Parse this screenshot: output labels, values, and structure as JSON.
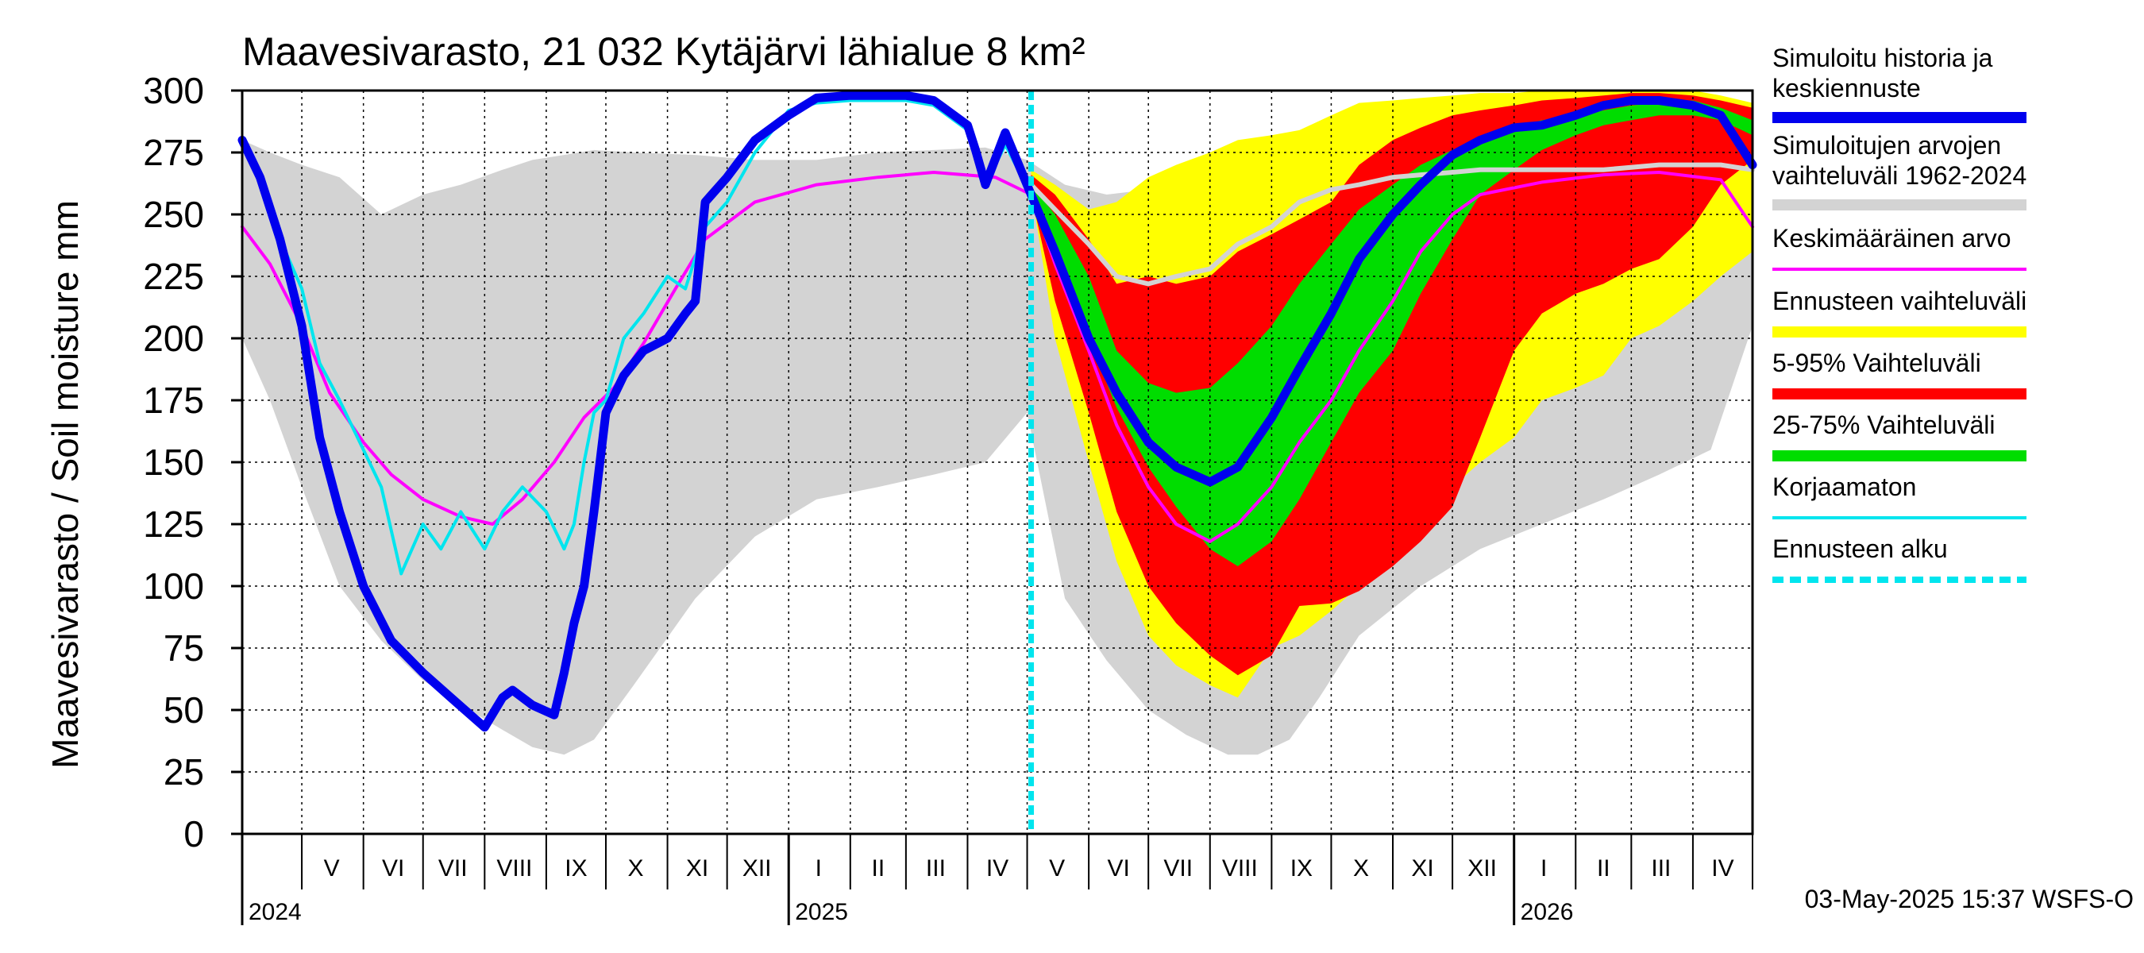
{
  "chart_data": {
    "type": "area",
    "title": "Maavesivarasto, 21 032 Kytäjärvi lähialue 8 km²",
    "ylabel": "Maavesivarasto / Soil moisture   mm",
    "ylim": [
      0,
      300
    ],
    "yticks": [
      "0",
      "25",
      "50",
      "75",
      "100",
      "125",
      "150",
      "175",
      "200",
      "225",
      "250",
      "275",
      "300"
    ],
    "x_start": "2024-04-01",
    "x_end": "2026-05-01",
    "forecast_start": "2025-05-03",
    "month_labels": [
      {
        "label": "V",
        "date": "2024-05-16"
      },
      {
        "label": "VI",
        "date": "2024-06-16"
      },
      {
        "label": "VII",
        "date": "2024-07-16"
      },
      {
        "label": "VIII",
        "date": "2024-08-16"
      },
      {
        "label": "IX",
        "date": "2024-09-16"
      },
      {
        "label": "X",
        "date": "2024-10-16"
      },
      {
        "label": "XI",
        "date": "2024-11-16"
      },
      {
        "label": "XII",
        "date": "2024-12-16"
      },
      {
        "label": "I",
        "date": "2025-01-16"
      },
      {
        "label": "II",
        "date": "2025-02-15"
      },
      {
        "label": "III",
        "date": "2025-03-16"
      },
      {
        "label": "IV",
        "date": "2025-04-16"
      },
      {
        "label": "V",
        "date": "2025-05-16"
      },
      {
        "label": "VI",
        "date": "2025-06-16"
      },
      {
        "label": "VII",
        "date": "2025-07-16"
      },
      {
        "label": "VIII",
        "date": "2025-08-16"
      },
      {
        "label": "IX",
        "date": "2025-09-16"
      },
      {
        "label": "X",
        "date": "2025-10-16"
      },
      {
        "label": "XI",
        "date": "2025-11-16"
      },
      {
        "label": "XII",
        "date": "2025-12-16"
      },
      {
        "label": "I",
        "date": "2026-01-16"
      },
      {
        "label": "II",
        "date": "2026-02-15"
      },
      {
        "label": "III",
        "date": "2026-03-16"
      },
      {
        "label": "IV",
        "date": "2026-04-16"
      }
    ],
    "year_labels": [
      {
        "label": "2024",
        "date": "2024-04-01"
      },
      {
        "label": "2025",
        "date": "2025-01-01"
      },
      {
        "label": "2026",
        "date": "2026-01-01"
      }
    ],
    "footer": "03-May-2025 15:37 WSFS-O",
    "legend": [
      {
        "label": "Simuloitu historia ja\nkeskiennuste",
        "color": "#0000ee",
        "style": "thick"
      },
      {
        "label": "Simuloitujen arvojen\nvaihteluväli 1962-2024",
        "color": "#d3d3d3",
        "style": "band"
      },
      {
        "label": "Keskimääräinen arvo",
        "color": "#ff00ff",
        "style": "line"
      },
      {
        "label": "Ennusteen vaihteluväli",
        "color": "#ffff00",
        "style": "band"
      },
      {
        "label": "5-95% Vaihteluväli",
        "color": "#ff0000",
        "style": "band"
      },
      {
        "label": "25-75% Vaihteluväli",
        "color": "#00dd00",
        "style": "band"
      },
      {
        "label": "Korjaamaton",
        "color": "#00e5ee",
        "style": "line"
      },
      {
        "label": "Ennusteen alku",
        "color": "#00e5ee",
        "style": "dashed"
      }
    ],
    "series": [
      {
        "name": "Simuloitujen arvojen vaihteluväli 1962-2024",
        "kind": "band",
        "color": "#d3d3d3",
        "x": [
          "2024-04-01",
          "2024-04-15",
          "2024-05-01",
          "2024-05-20",
          "2024-06-10",
          "2024-07-01",
          "2024-07-20",
          "2024-08-10",
          "2024-08-25",
          "2024-09-10",
          "2024-09-25",
          "2024-10-15",
          "2024-11-15",
          "2024-12-15",
          "2025-01-15",
          "2025-02-15",
          "2025-03-15",
          "2025-04-10",
          "2025-05-01",
          "2025-05-20",
          "2025-06-10",
          "2025-07-01",
          "2025-07-20",
          "2025-08-10",
          "2025-08-25",
          "2025-09-10",
          "2025-09-25",
          "2025-10-15",
          "2025-11-15",
          "2025-12-15",
          "2026-01-15",
          "2026-02-15",
          "2026-03-15",
          "2026-04-10",
          "2026-05-01"
        ],
        "low": [
          200,
          175,
          140,
          100,
          78,
          62,
          52,
          42,
          35,
          32,
          38,
          60,
          95,
          120,
          135,
          140,
          145,
          150,
          170,
          95,
          70,
          50,
          40,
          32,
          32,
          38,
          55,
          80,
          100,
          115,
          125,
          135,
          145,
          155,
          205
        ],
        "high": [
          280,
          275,
          270,
          265,
          250,
          258,
          262,
          268,
          272,
          274,
          276,
          275,
          274,
          272,
          272,
          275,
          276,
          277,
          272,
          262,
          258,
          260,
          262,
          264,
          266,
          268,
          272,
          274,
          274,
          274,
          274,
          274,
          276,
          278,
          285
        ]
      },
      {
        "name": "Ennusteen vaihteluväli",
        "kind": "band",
        "color": "#ffff00",
        "x": [
          "2025-05-03",
          "2025-05-15",
          "2025-06-01",
          "2025-06-15",
          "2025-07-01",
          "2025-07-15",
          "2025-08-01",
          "2025-08-15",
          "2025-09-01",
          "2025-09-15",
          "2025-10-01",
          "2025-10-15",
          "2025-11-01",
          "2025-11-15",
          "2025-12-01",
          "2025-12-15",
          "2026-01-01",
          "2026-01-15",
          "2026-02-01",
          "2026-02-15",
          "2026-03-01",
          "2026-03-15",
          "2026-04-01",
          "2026-04-15",
          "2026-05-01"
        ],
        "low": [
          260,
          200,
          150,
          110,
          80,
          68,
          60,
          55,
          75,
          80,
          90,
          100,
          120,
          130,
          140,
          150,
          160,
          175,
          180,
          185,
          200,
          205,
          215,
          225,
          235
        ],
        "high": [
          268,
          262,
          252,
          255,
          265,
          270,
          275,
          280,
          282,
          284,
          290,
          295,
          296,
          297,
          298,
          299,
          299,
          300,
          300,
          300,
          300,
          300,
          300,
          298,
          295
        ]
      },
      {
        "name": "5-95% Vaihteluväli",
        "kind": "band",
        "color": "#ff0000",
        "x": [
          "2025-05-03",
          "2025-05-15",
          "2025-06-01",
          "2025-06-15",
          "2025-07-01",
          "2025-07-15",
          "2025-08-01",
          "2025-08-15",
          "2025-09-01",
          "2025-09-15",
          "2025-10-01",
          "2025-10-15",
          "2025-11-01",
          "2025-11-15",
          "2025-12-01",
          "2025-12-15",
          "2026-01-01",
          "2026-01-15",
          "2026-02-01",
          "2026-02-15",
          "2026-03-01",
          "2026-03-15",
          "2026-04-01",
          "2026-04-15",
          "2026-05-01"
        ],
        "low": [
          258,
          215,
          170,
          130,
          100,
          85,
          72,
          64,
          72,
          92,
          93,
          98,
          108,
          118,
          132,
          160,
          195,
          210,
          218,
          222,
          228,
          232,
          245,
          262,
          272
        ],
        "high": [
          266,
          258,
          240,
          222,
          225,
          222,
          225,
          235,
          242,
          248,
          255,
          270,
          280,
          285,
          290,
          292,
          294,
          296,
          297,
          298,
          299,
          299,
          298,
          296,
          293
        ]
      },
      {
        "name": "25-75% Vaihteluväli",
        "kind": "band",
        "color": "#00dd00",
        "x": [
          "2025-05-03",
          "2025-05-15",
          "2025-06-01",
          "2025-06-15",
          "2025-07-01",
          "2025-07-15",
          "2025-08-01",
          "2025-08-15",
          "2025-09-01",
          "2025-09-15",
          "2025-10-01",
          "2025-10-15",
          "2025-11-01",
          "2025-11-15",
          "2025-12-01",
          "2025-12-15",
          "2026-01-01",
          "2026-01-15",
          "2026-02-01",
          "2026-02-15",
          "2026-03-01",
          "2026-03-15",
          "2026-04-01",
          "2026-04-15",
          "2026-05-01"
        ],
        "low": [
          256,
          235,
          200,
          172,
          148,
          132,
          115,
          108,
          118,
          135,
          158,
          178,
          195,
          218,
          240,
          258,
          268,
          276,
          282,
          286,
          288,
          290,
          290,
          288,
          282
        ],
        "high": [
          262,
          250,
          225,
          195,
          182,
          178,
          180,
          190,
          205,
          222,
          238,
          252,
          262,
          270,
          276,
          280,
          285,
          288,
          290,
          292,
          294,
          295,
          296,
          293,
          288
        ]
      },
      {
        "name": "Simuloitu historia ja keskiennuste",
        "kind": "line",
        "color": "#0000ee",
        "width": 11,
        "x": [
          "2024-04-01",
          "2024-04-10",
          "2024-04-20",
          "2024-05-01",
          "2024-05-10",
          "2024-05-20",
          "2024-06-01",
          "2024-06-15",
          "2024-07-01",
          "2024-07-15",
          "2024-08-01",
          "2024-08-10",
          "2024-08-15",
          "2024-08-25",
          "2024-09-05",
          "2024-09-10",
          "2024-09-15",
          "2024-09-20",
          "2024-09-25",
          "2024-10-01",
          "2024-10-10",
          "2024-10-20",
          "2024-11-01",
          "2024-11-10",
          "2024-11-15",
          "2024-11-20",
          "2024-12-01",
          "2024-12-15",
          "2025-01-01",
          "2025-01-15",
          "2025-02-01",
          "2025-02-15",
          "2025-03-01",
          "2025-03-15",
          "2025-04-01",
          "2025-04-05",
          "2025-04-10",
          "2025-04-20",
          "2025-05-03",
          "2025-05-15",
          "2025-06-01",
          "2025-06-15",
          "2025-07-01",
          "2025-07-15",
          "2025-08-01",
          "2025-08-15",
          "2025-09-01",
          "2025-09-15",
          "2025-10-01",
          "2025-10-15",
          "2025-11-01",
          "2025-11-15",
          "2025-12-01",
          "2025-12-15",
          "2026-01-01",
          "2026-01-15",
          "2026-02-01",
          "2026-02-15",
          "2026-03-01",
          "2026-03-15",
          "2026-04-01",
          "2026-04-15",
          "2026-05-01"
        ],
        "values": [
          280,
          265,
          240,
          205,
          160,
          130,
          100,
          78,
          65,
          55,
          43,
          55,
          58,
          52,
          48,
          65,
          85,
          100,
          130,
          170,
          185,
          195,
          200,
          210,
          215,
          255,
          265,
          280,
          290,
          297,
          298,
          298,
          298,
          296,
          286,
          276,
          262,
          283,
          258,
          235,
          200,
          178,
          158,
          148,
          142,
          148,
          168,
          188,
          210,
          232,
          250,
          262,
          274,
          280,
          285,
          286,
          290,
          294,
          296,
          296,
          294,
          290,
          270
        ]
      },
      {
        "name": "Keskimääräinen arvo",
        "kind": "line",
        "color": "#ff00ff",
        "width": 4,
        "x": [
          "2024-04-01",
          "2024-04-15",
          "2024-05-01",
          "2024-05-15",
          "2024-06-01",
          "2024-06-15",
          "2024-07-01",
          "2024-07-20",
          "2024-08-05",
          "2024-08-20",
          "2024-09-05",
          "2024-09-20",
          "2024-10-05",
          "2024-10-20",
          "2024-11-05",
          "2024-11-20",
          "2024-12-15",
          "2025-01-15",
          "2025-02-15",
          "2025-03-15",
          "2025-04-15",
          "2025-05-03",
          "2025-05-15",
          "2025-06-01",
          "2025-06-15",
          "2025-07-01",
          "2025-07-15",
          "2025-08-01",
          "2025-08-15",
          "2025-09-01",
          "2025-09-15",
          "2025-10-01",
          "2025-10-15",
          "2025-11-01",
          "2025-11-15",
          "2025-12-01",
          "2025-12-15",
          "2026-01-15",
          "2026-02-15",
          "2026-03-15",
          "2026-04-15",
          "2026-05-01"
        ],
        "values": [
          245,
          230,
          205,
          178,
          158,
          145,
          135,
          128,
          125,
          135,
          150,
          168,
          180,
          198,
          220,
          240,
          255,
          262,
          265,
          267,
          265,
          258,
          230,
          195,
          165,
          140,
          125,
          118,
          125,
          140,
          158,
          175,
          195,
          215,
          235,
          250,
          258,
          263,
          266,
          267,
          264,
          245
        ]
      },
      {
        "name": "Simuloitujen arvojen mediaani",
        "kind": "line",
        "color": "#d3d3d3",
        "width": 6,
        "x": [
          "2025-05-03",
          "2025-05-15",
          "2025-06-01",
          "2025-06-15",
          "2025-07-01",
          "2025-07-15",
          "2025-08-01",
          "2025-08-15",
          "2025-09-01",
          "2025-09-15",
          "2025-10-01",
          "2025-10-15",
          "2025-11-01",
          "2025-11-15",
          "2025-12-01",
          "2025-12-15",
          "2026-01-15",
          "2026-02-15",
          "2026-03-15",
          "2026-04-15",
          "2026-05-01"
        ],
        "values": [
          262,
          252,
          238,
          225,
          222,
          225,
          228,
          238,
          245,
          255,
          260,
          262,
          265,
          266,
          267,
          268,
          268,
          268,
          270,
          270,
          268
        ]
      },
      {
        "name": "Korjaamaton",
        "kind": "line",
        "color": "#00e5ee",
        "width": 4,
        "x": [
          "2024-04-01",
          "2024-04-10",
          "2024-04-20",
          "2024-05-01",
          "2024-05-10",
          "2024-05-20",
          "2024-06-01",
          "2024-06-10",
          "2024-06-20",
          "2024-07-01",
          "2024-07-10",
          "2024-07-20",
          "2024-08-01",
          "2024-08-10",
          "2024-08-20",
          "2024-09-01",
          "2024-09-10",
          "2024-09-15",
          "2024-09-20",
          "2024-09-25",
          "2024-10-01",
          "2024-10-10",
          "2024-10-20",
          "2024-11-01",
          "2024-11-10",
          "2024-11-20",
          "2024-12-01",
          "2024-12-15",
          "2025-01-01",
          "2025-01-15",
          "2025-02-01",
          "2025-02-15",
          "2025-03-01",
          "2025-03-15",
          "2025-04-01",
          "2025-04-05",
          "2025-04-10",
          "2025-04-20",
          "2025-05-03"
        ],
        "values": [
          280,
          265,
          240,
          220,
          190,
          175,
          155,
          140,
          105,
          125,
          115,
          130,
          115,
          130,
          140,
          130,
          115,
          125,
          150,
          170,
          175,
          200,
          210,
          225,
          220,
          245,
          255,
          275,
          292,
          295,
          296,
          296,
          296,
          294,
          284,
          275,
          262,
          278,
          258
        ]
      }
    ]
  }
}
